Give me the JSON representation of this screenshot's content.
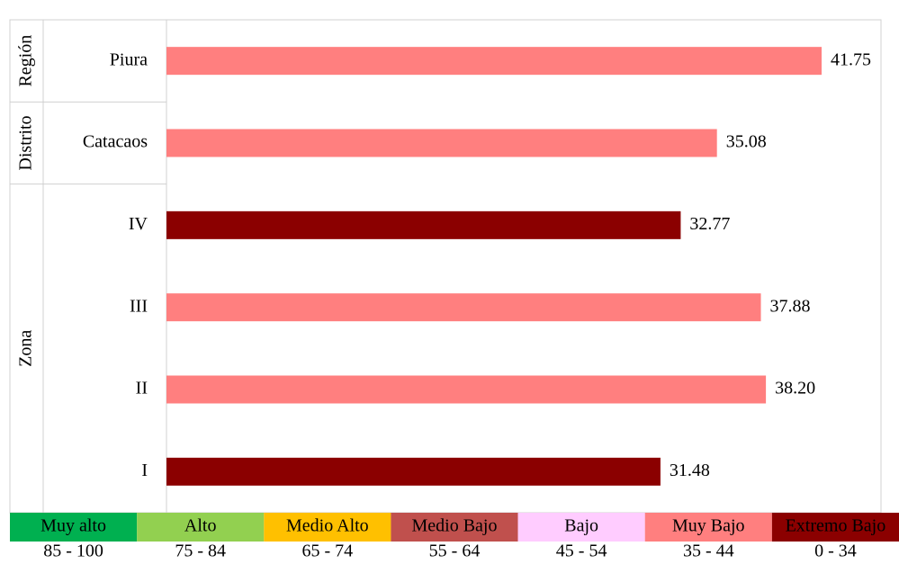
{
  "chart_data": {
    "type": "hbar",
    "categories": [
      "Piura",
      "Catacaos",
      "IV",
      "III",
      "II",
      "I"
    ],
    "values": [
      41.75,
      35.08,
      32.77,
      37.88,
      38.2,
      31.48
    ],
    "value_labels": [
      "41.75",
      "35.08",
      "32.77",
      "37.88",
      "38.20",
      "31.48"
    ],
    "colors": [
      "#ff7f7f",
      "#ff7f7f",
      "#8b0000",
      "#ff7f7f",
      "#ff7f7f",
      "#8b0000"
    ],
    "groups": [
      {
        "name": "Región",
        "size": 1
      },
      {
        "name": "Distrito",
        "size": 1
      },
      {
        "name": "Zona",
        "size": 4
      }
    ],
    "legend": [
      {
        "name": "Muy alto",
        "color": "#00b050",
        "range": "85 - 100"
      },
      {
        "name": "Alto",
        "color": "#92d050",
        "range": "75 - 84"
      },
      {
        "name": "Medio Alto",
        "color": "#ffc000",
        "range": "65 - 74"
      },
      {
        "name": "Medio Bajo",
        "color": "#c0504d",
        "range": "55 - 64"
      },
      {
        "name": "Bajo",
        "color": "#ffccff",
        "range": "45 - 54"
      },
      {
        "name": "Muy Bajo",
        "color": "#ff7f7f",
        "range": "35 - 44"
      },
      {
        "name": "Extremo Bajo",
        "color": "#8b0000",
        "range": "0 - 34"
      }
    ]
  }
}
